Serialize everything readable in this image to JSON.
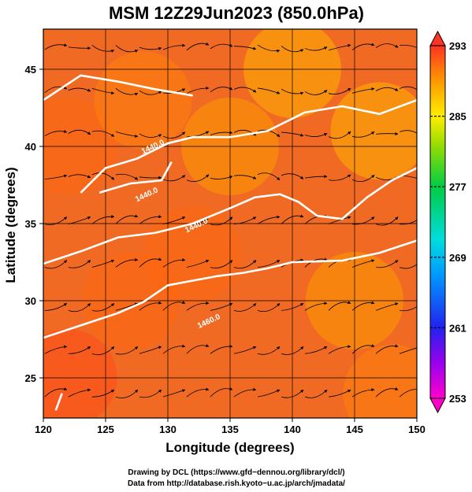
{
  "chart_data": {
    "type": "heatmap",
    "title": "MSM 12Z29Jun2023 (850.0hPa)",
    "xlabel": "Longitude (degrees)",
    "ylabel": "Latitude  (degrees)",
    "xlim": [
      120,
      150
    ],
    "ylim": [
      22.4,
      47.6
    ],
    "x_ticks": [
      "120",
      "125",
      "130",
      "135",
      "140",
      "145",
      "150"
    ],
    "y_ticks": [
      "25",
      "30",
      "35",
      "40",
      "45"
    ],
    "grid": true,
    "colorbar": {
      "placement": "right",
      "min": 253,
      "max": 293,
      "tick_labels": [
        "293",
        "285",
        "277",
        "269",
        "261",
        "253"
      ],
      "tick_values": [
        293,
        285,
        277,
        269,
        261,
        253
      ]
    },
    "field": "temperature (K), shaded; streamlines of wind; white contours of geopotential height",
    "temperature_samples": [
      {
        "lon": 122,
        "lat": 25,
        "value": 292
      },
      {
        "lon": 127,
        "lat": 30,
        "value": 291
      },
      {
        "lon": 132,
        "lat": 33,
        "value": 291
      },
      {
        "lon": 122,
        "lat": 40,
        "value": 291
      },
      {
        "lon": 128,
        "lat": 43,
        "value": 290
      },
      {
        "lon": 135,
        "lat": 40,
        "value": 289
      },
      {
        "lon": 140,
        "lat": 45,
        "value": 288
      },
      {
        "lon": 147,
        "lat": 41,
        "value": 288
      },
      {
        "lon": 145,
        "lat": 30,
        "value": 289
      },
      {
        "lon": 148,
        "lat": 24,
        "value": 290
      }
    ],
    "contours": [
      {
        "label": "1440.0",
        "points": [
          [
            120,
            43.0
          ],
          [
            123,
            44.6
          ],
          [
            126,
            44.2
          ],
          [
            129,
            43.7
          ],
          [
            132,
            43.3
          ]
        ]
      },
      {
        "label": "1440.0",
        "points": [
          [
            123,
            37.0
          ],
          [
            125,
            38.6
          ],
          [
            127.5,
            39.2
          ],
          [
            130,
            40.2
          ],
          [
            132,
            40.6
          ],
          [
            135,
            40.6
          ],
          [
            138,
            41.0
          ],
          [
            141,
            42.2
          ],
          [
            144,
            42.6
          ],
          [
            147,
            42.1
          ],
          [
            150,
            43.0
          ]
        ]
      },
      {
        "label": "1440.0",
        "points": [
          [
            124.5,
            37.0
          ],
          [
            127,
            37.6
          ],
          [
            129.5,
            37.8
          ],
          [
            130.3,
            39.0
          ]
        ]
      },
      {
        "label": "1440.0",
        "points": [
          [
            120,
            32.4
          ],
          [
            123,
            33.2
          ],
          [
            126,
            34.1
          ],
          [
            129,
            34.4
          ],
          [
            132,
            35.0
          ],
          [
            135,
            36.0
          ],
          [
            137,
            36.7
          ],
          [
            139,
            36.9
          ],
          [
            140.5,
            36.4
          ],
          [
            142,
            35.5
          ],
          [
            144,
            35.3
          ],
          [
            146,
            36.7
          ],
          [
            148,
            37.8
          ],
          [
            150,
            38.6
          ]
        ]
      },
      {
        "label": "1460.0",
        "points": [
          [
            120,
            27.6
          ],
          [
            123,
            28.4
          ],
          [
            126,
            29.2
          ],
          [
            128,
            29.9
          ],
          [
            130,
            31.0
          ],
          [
            132,
            31.3
          ],
          [
            134,
            31.6
          ],
          [
            136,
            31.8
          ],
          [
            138,
            32.1
          ],
          [
            140,
            32.5
          ],
          [
            144,
            32.6
          ],
          [
            147,
            33.1
          ],
          [
            150,
            33.9
          ]
        ]
      },
      {
        "label": "1460.0",
        "points": [
          [
            121,
            22.9
          ],
          [
            121.5,
            24.0
          ]
        ]
      }
    ],
    "contour_label_positions": [
      {
        "text": "1440.0",
        "lon": 127.5,
        "lat": 36.4
      },
      {
        "text": "1440.0",
        "lon": 131.5,
        "lat": 34.4
      },
      {
        "text": "1460.0",
        "lon": 132.5,
        "lat": 28.2
      },
      {
        "text": "1440.0",
        "lon": 128.0,
        "lat": 39.5
      }
    ]
  },
  "credits": {
    "line1": "Drawing by DCL (https://www.gfd−dennou.org/library/dcl/)",
    "line2": "Data from http://database.rish.kyoto−u.ac.jp/arch/jmadata/"
  }
}
